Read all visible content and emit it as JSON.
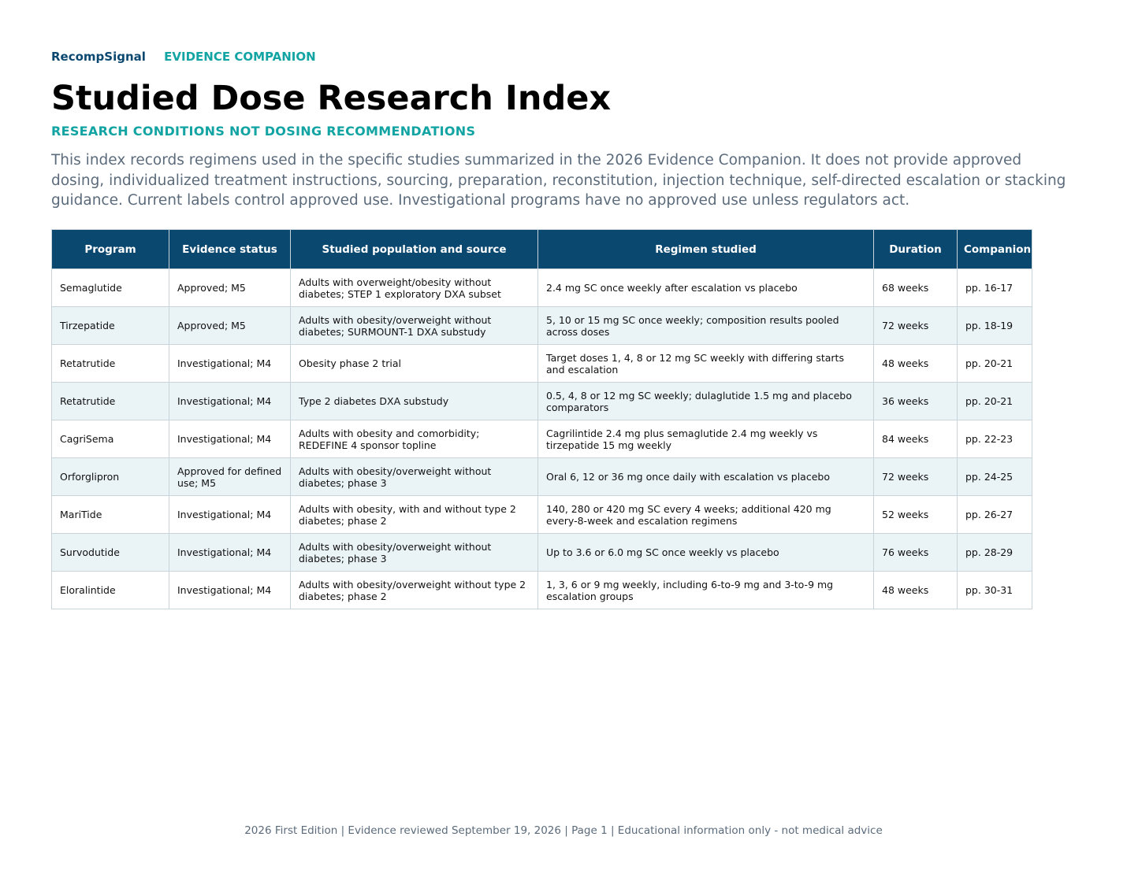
{
  "header": {
    "brand": "RecompSignal",
    "section": "EVIDENCE COMPANION",
    "title": "Studied Dose Research Index",
    "subtitle": "RESEARCH CONDITIONS NOT DOSING RECOMMENDATIONS",
    "intro": "This index records regimens used in the specific studies summarized in the 2026 Evidence Companion. It does not provide approved dosing, individualized treatment instructions, sourcing, preparation, reconstitution, injection technique, self-directed escalation or stacking guidance. Current labels control approved use. Investigational programs have no approved use unless regulators act."
  },
  "table": {
    "columns": [
      "Program",
      "Evidence status",
      "Studied population and source",
      "Regimen studied",
      "Duration",
      "Companion"
    ],
    "rows": [
      {
        "program": "Semaglutide",
        "status": "Approved; M5",
        "population": "Adults with overweight/obesity without diabetes; STEP 1 exploratory DXA subset",
        "regimen": "2.4 mg SC once weekly after escalation vs placebo",
        "duration": "68 weeks",
        "companion": "pp. 16-17"
      },
      {
        "program": "Tirzepatide",
        "status": "Approved; M5",
        "population": "Adults with obesity/overweight without diabetes; SURMOUNT-1 DXA substudy",
        "regimen": "5, 10 or 15 mg SC once weekly; composition results pooled across doses",
        "duration": "72 weeks",
        "companion": "pp. 18-19"
      },
      {
        "program": "Retatrutide",
        "status": "Investigational; M4",
        "population": "Obesity phase 2 trial",
        "regimen": "Target doses 1, 4, 8 or 12 mg SC weekly with differing starts and escalation",
        "duration": "48 weeks",
        "companion": "pp. 20-21"
      },
      {
        "program": "Retatrutide",
        "status": "Investigational; M4",
        "population": "Type 2 diabetes DXA substudy",
        "regimen": "0.5, 4, 8 or 12 mg SC weekly; dulaglutide 1.5 mg and placebo comparators",
        "duration": "36 weeks",
        "companion": "pp. 20-21"
      },
      {
        "program": "CagriSema",
        "status": "Investigational; M4",
        "population": "Adults with obesity and comorbidity; REDEFINE 4 sponsor topline",
        "regimen": "Cagrilintide 2.4 mg plus semaglutide 2.4 mg weekly vs tirzepatide 15 mg weekly",
        "duration": "84 weeks",
        "companion": "pp. 22-23"
      },
      {
        "program": "Orforglipron",
        "status": "Approved for defined use; M5",
        "population": "Adults with obesity/overweight without diabetes; phase 3",
        "regimen": "Oral 6, 12 or 36 mg once daily with escalation vs placebo",
        "duration": "72 weeks",
        "companion": "pp. 24-25"
      },
      {
        "program": "MariTide",
        "status": "Investigational; M4",
        "population": "Adults with obesity, with and without type 2 diabetes; phase 2",
        "regimen": "140, 280 or 420 mg SC every 4 weeks; additional 420 mg every-8-week and escalation regimens",
        "duration": "52 weeks",
        "companion": "pp. 26-27"
      },
      {
        "program": "Survodutide",
        "status": "Investigational; M4",
        "population": "Adults with obesity/overweight without diabetes; phase 3",
        "regimen": "Up to 3.6 or 6.0 mg SC once weekly vs placebo",
        "duration": "76 weeks",
        "companion": "pp. 28-29"
      },
      {
        "program": "Eloralintide",
        "status": "Investigational; M4",
        "population": "Adults with obesity/overweight without type 2 diabetes; phase 2",
        "regimen": "1, 3, 6 or 9 mg weekly, including 6-to-9 mg and 3-to-9 mg escalation groups",
        "duration": "48 weeks",
        "companion": "pp. 30-31"
      }
    ]
  },
  "footer": {
    "text": "2026 First Edition | Evidence reviewed September 19, 2026 | Page 1 | Educational information only - not medical advice"
  },
  "colors": {
    "brand_navy": "#0b4870",
    "accent_teal": "#12a3a3",
    "body_gray": "#5b6b7b",
    "row_alt": "#eaf3f6"
  }
}
